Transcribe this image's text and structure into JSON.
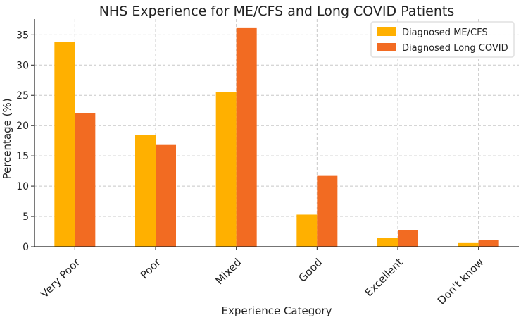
{
  "chart_data": {
    "type": "bar",
    "title": "NHS Experience for ME/CFS and Long COVID Patients",
    "xlabel": "Experience Category",
    "ylabel": "Percentage (%)",
    "categories": [
      "Very Poor",
      "Poor",
      "Mixed",
      "Good",
      "Excellent",
      "Don't know"
    ],
    "series": [
      {
        "name": "Diagnosed ME/CFS",
        "color": "#ffb000",
        "values": [
          33.8,
          18.4,
          25.5,
          5.3,
          1.4,
          0.6
        ]
      },
      {
        "name": "Diagnosed Long COVID",
        "color": "#f26b22",
        "values": [
          22.1,
          16.8,
          36.1,
          11.8,
          2.7,
          1.1
        ]
      }
    ],
    "ylim": [
      0,
      37.6
    ],
    "yticks": [
      0,
      5,
      10,
      15,
      20,
      25,
      30,
      35
    ],
    "grid": true,
    "legend": "top-right"
  }
}
